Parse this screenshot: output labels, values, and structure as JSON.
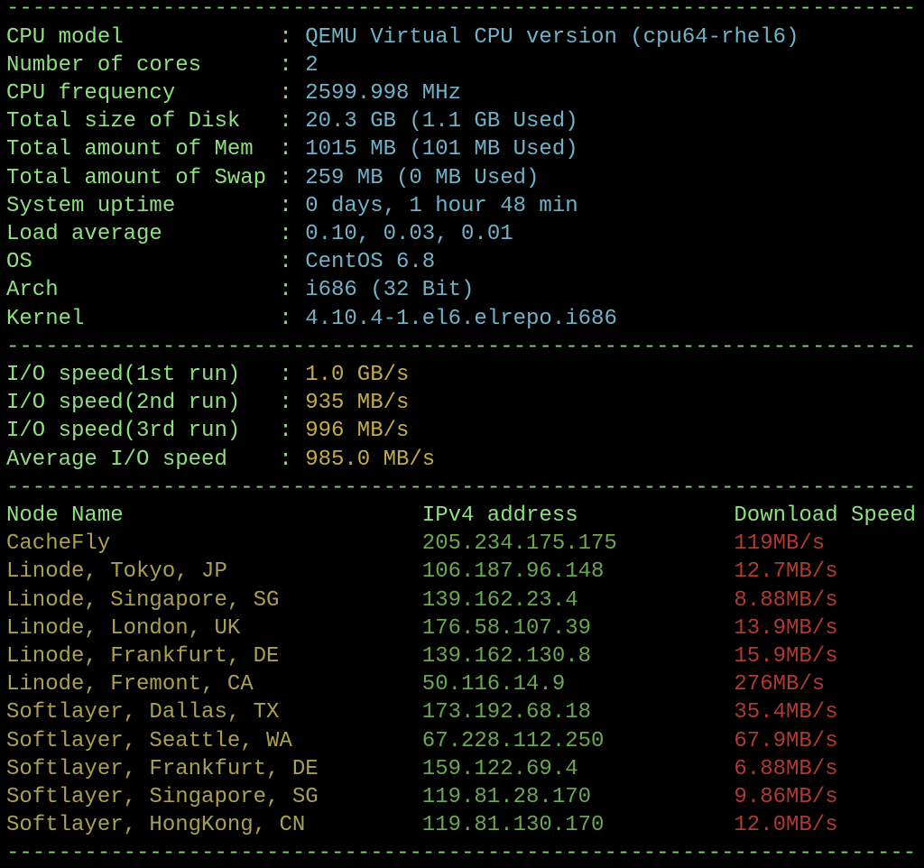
{
  "separator": "----------------------------------------------------------------------",
  "system": {
    "rows": [
      [
        "CPU model",
        ":",
        "QEMU Virtual CPU version (cpu64-rhel6)"
      ],
      [
        "Number of cores",
        ":",
        "2"
      ],
      [
        "CPU frequency",
        ":",
        "2599.998 MHz"
      ],
      [
        "Total size of Disk",
        ":",
        "20.3 GB (1.1 GB Used)"
      ],
      [
        "Total amount of Mem",
        ":",
        "1015 MB (101 MB Used)"
      ],
      [
        "Total amount of Swap",
        ":",
        "259 MB (0 MB Used)"
      ],
      [
        "System uptime",
        ":",
        "0 days, 1 hour 48 min"
      ],
      [
        "Load average",
        ":",
        "0.10, 0.03, 0.01"
      ],
      [
        "OS",
        ":",
        "CentOS 6.8"
      ],
      [
        "Arch",
        ":",
        "i686 (32 Bit)"
      ],
      [
        "Kernel",
        ":",
        "4.10.4-1.el6.elrepo.i686"
      ]
    ]
  },
  "io": {
    "rows": [
      [
        "I/O speed(1st run)",
        ":",
        "1.0 GB/s"
      ],
      [
        "I/O speed(2nd run)",
        ":",
        "935 MB/s"
      ],
      [
        "I/O speed(3rd run)",
        ":",
        "996 MB/s"
      ],
      [
        "Average I/O speed",
        ":",
        "985.0 MB/s"
      ]
    ]
  },
  "nodes": {
    "header": [
      "Node Name",
      "IPv4 address",
      "Download Speed"
    ],
    "rows": [
      [
        "CacheFly",
        "205.234.175.175",
        "119MB/s"
      ],
      [
        "Linode, Tokyo, JP",
        "106.187.96.148",
        "12.7MB/s"
      ],
      [
        "Linode, Singapore, SG",
        "139.162.23.4",
        "8.88MB/s"
      ],
      [
        "Linode, London, UK",
        "176.58.107.39",
        "13.9MB/s"
      ],
      [
        "Linode, Frankfurt, DE",
        "139.162.130.8",
        "15.9MB/s"
      ],
      [
        "Linode, Fremont, CA",
        "50.116.14.9",
        "276MB/s"
      ],
      [
        "Softlayer, Dallas, TX",
        "173.192.68.18",
        "35.4MB/s"
      ],
      [
        "Softlayer, Seattle, WA",
        "67.228.112.250",
        "67.9MB/s"
      ],
      [
        "Softlayer, Frankfurt, DE",
        "159.122.69.4",
        "6.88MB/s"
      ],
      [
        "Softlayer, Singapore, SG",
        "119.81.28.170",
        "9.86MB/s"
      ],
      [
        "Softlayer, HongKong, CN",
        "119.81.130.170",
        "12.0MB/s"
      ]
    ]
  }
}
